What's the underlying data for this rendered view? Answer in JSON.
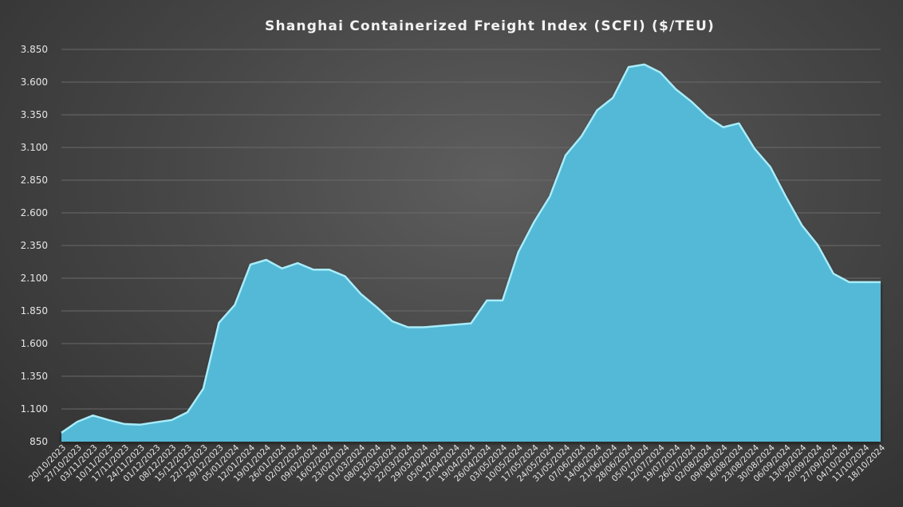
{
  "chart_data": {
    "type": "area",
    "title": "Shanghai Containerized Freight Index (SCFI) ($/TEU)",
    "xlabel": "",
    "ylabel": "",
    "ylim": [
      850,
      3850
    ],
    "yticks": [
      850,
      1100,
      1350,
      1600,
      1850,
      2100,
      2350,
      2600,
      2850,
      3100,
      3350,
      3600,
      3850
    ],
    "ytick_labels": [
      "850",
      "1.100",
      "1.350",
      "1.600",
      "1.850",
      "2.100",
      "2.350",
      "2.600",
      "2.850",
      "3.100",
      "3.350",
      "3.600",
      "3.850"
    ],
    "grid": true,
    "legend": "none",
    "colors": {
      "fill": "#52b9d6",
      "line": "#a9ecfa",
      "grid": "#6a6a6a",
      "text": "#e6e6e6"
    },
    "categories": [
      "20/10/2023",
      "27/10/2023",
      "03/11/2023",
      "10/11/2023",
      "17/11/2023",
      "24/11/2023",
      "01/12/2023",
      "08/12/2023",
      "15/12/2023",
      "22/12/2023",
      "29/12/2023",
      "05/01/2024",
      "12/01/2024",
      "19/01/2024",
      "26/01/2024",
      "02/02/2024",
      "09/02/2024",
      "16/02/2024",
      "23/02/2024",
      "01/03/2024",
      "08/03/2024",
      "15/03/2024",
      "22/03/2024",
      "29/03/2024",
      "05/04/2024",
      "12/04/2024",
      "19/04/2024",
      "26/04/2024",
      "03/05/2024",
      "10/05/2024",
      "17/05/2024",
      "24/05/2024",
      "31/05/2024",
      "07/06/2024",
      "14/06/2024",
      "21/06/2024",
      "28/06/2024",
      "05/07/2024",
      "12/07/2024",
      "19/07/2024",
      "26/07/2024",
      "02/08/2024",
      "09/08/2024",
      "16/08/2024",
      "23/08/2024",
      "30/08/2024",
      "06/09/2024",
      "13/09/2024",
      "20/09/2024",
      "27/09/2024",
      "04/10/2024",
      "11/10/2024",
      "18/10/2024"
    ],
    "values": [
      918,
      1002,
      1050,
      1015,
      985,
      980,
      998,
      1015,
      1075,
      1255,
      1760,
      1895,
      2205,
      2240,
      2175,
      2215,
      2165,
      2165,
      2115,
      1980,
      1880,
      1770,
      1725,
      1725,
      1735,
      1745,
      1755,
      1930,
      1930,
      2300,
      2530,
      2725,
      3040,
      3185,
      3385,
      3480,
      3715,
      3735,
      3675,
      3545,
      3450,
      3335,
      3255,
      3285,
      3090,
      2950,
      2720,
      2505,
      2355,
      2135,
      2070,
      2070,
      2070
    ]
  }
}
